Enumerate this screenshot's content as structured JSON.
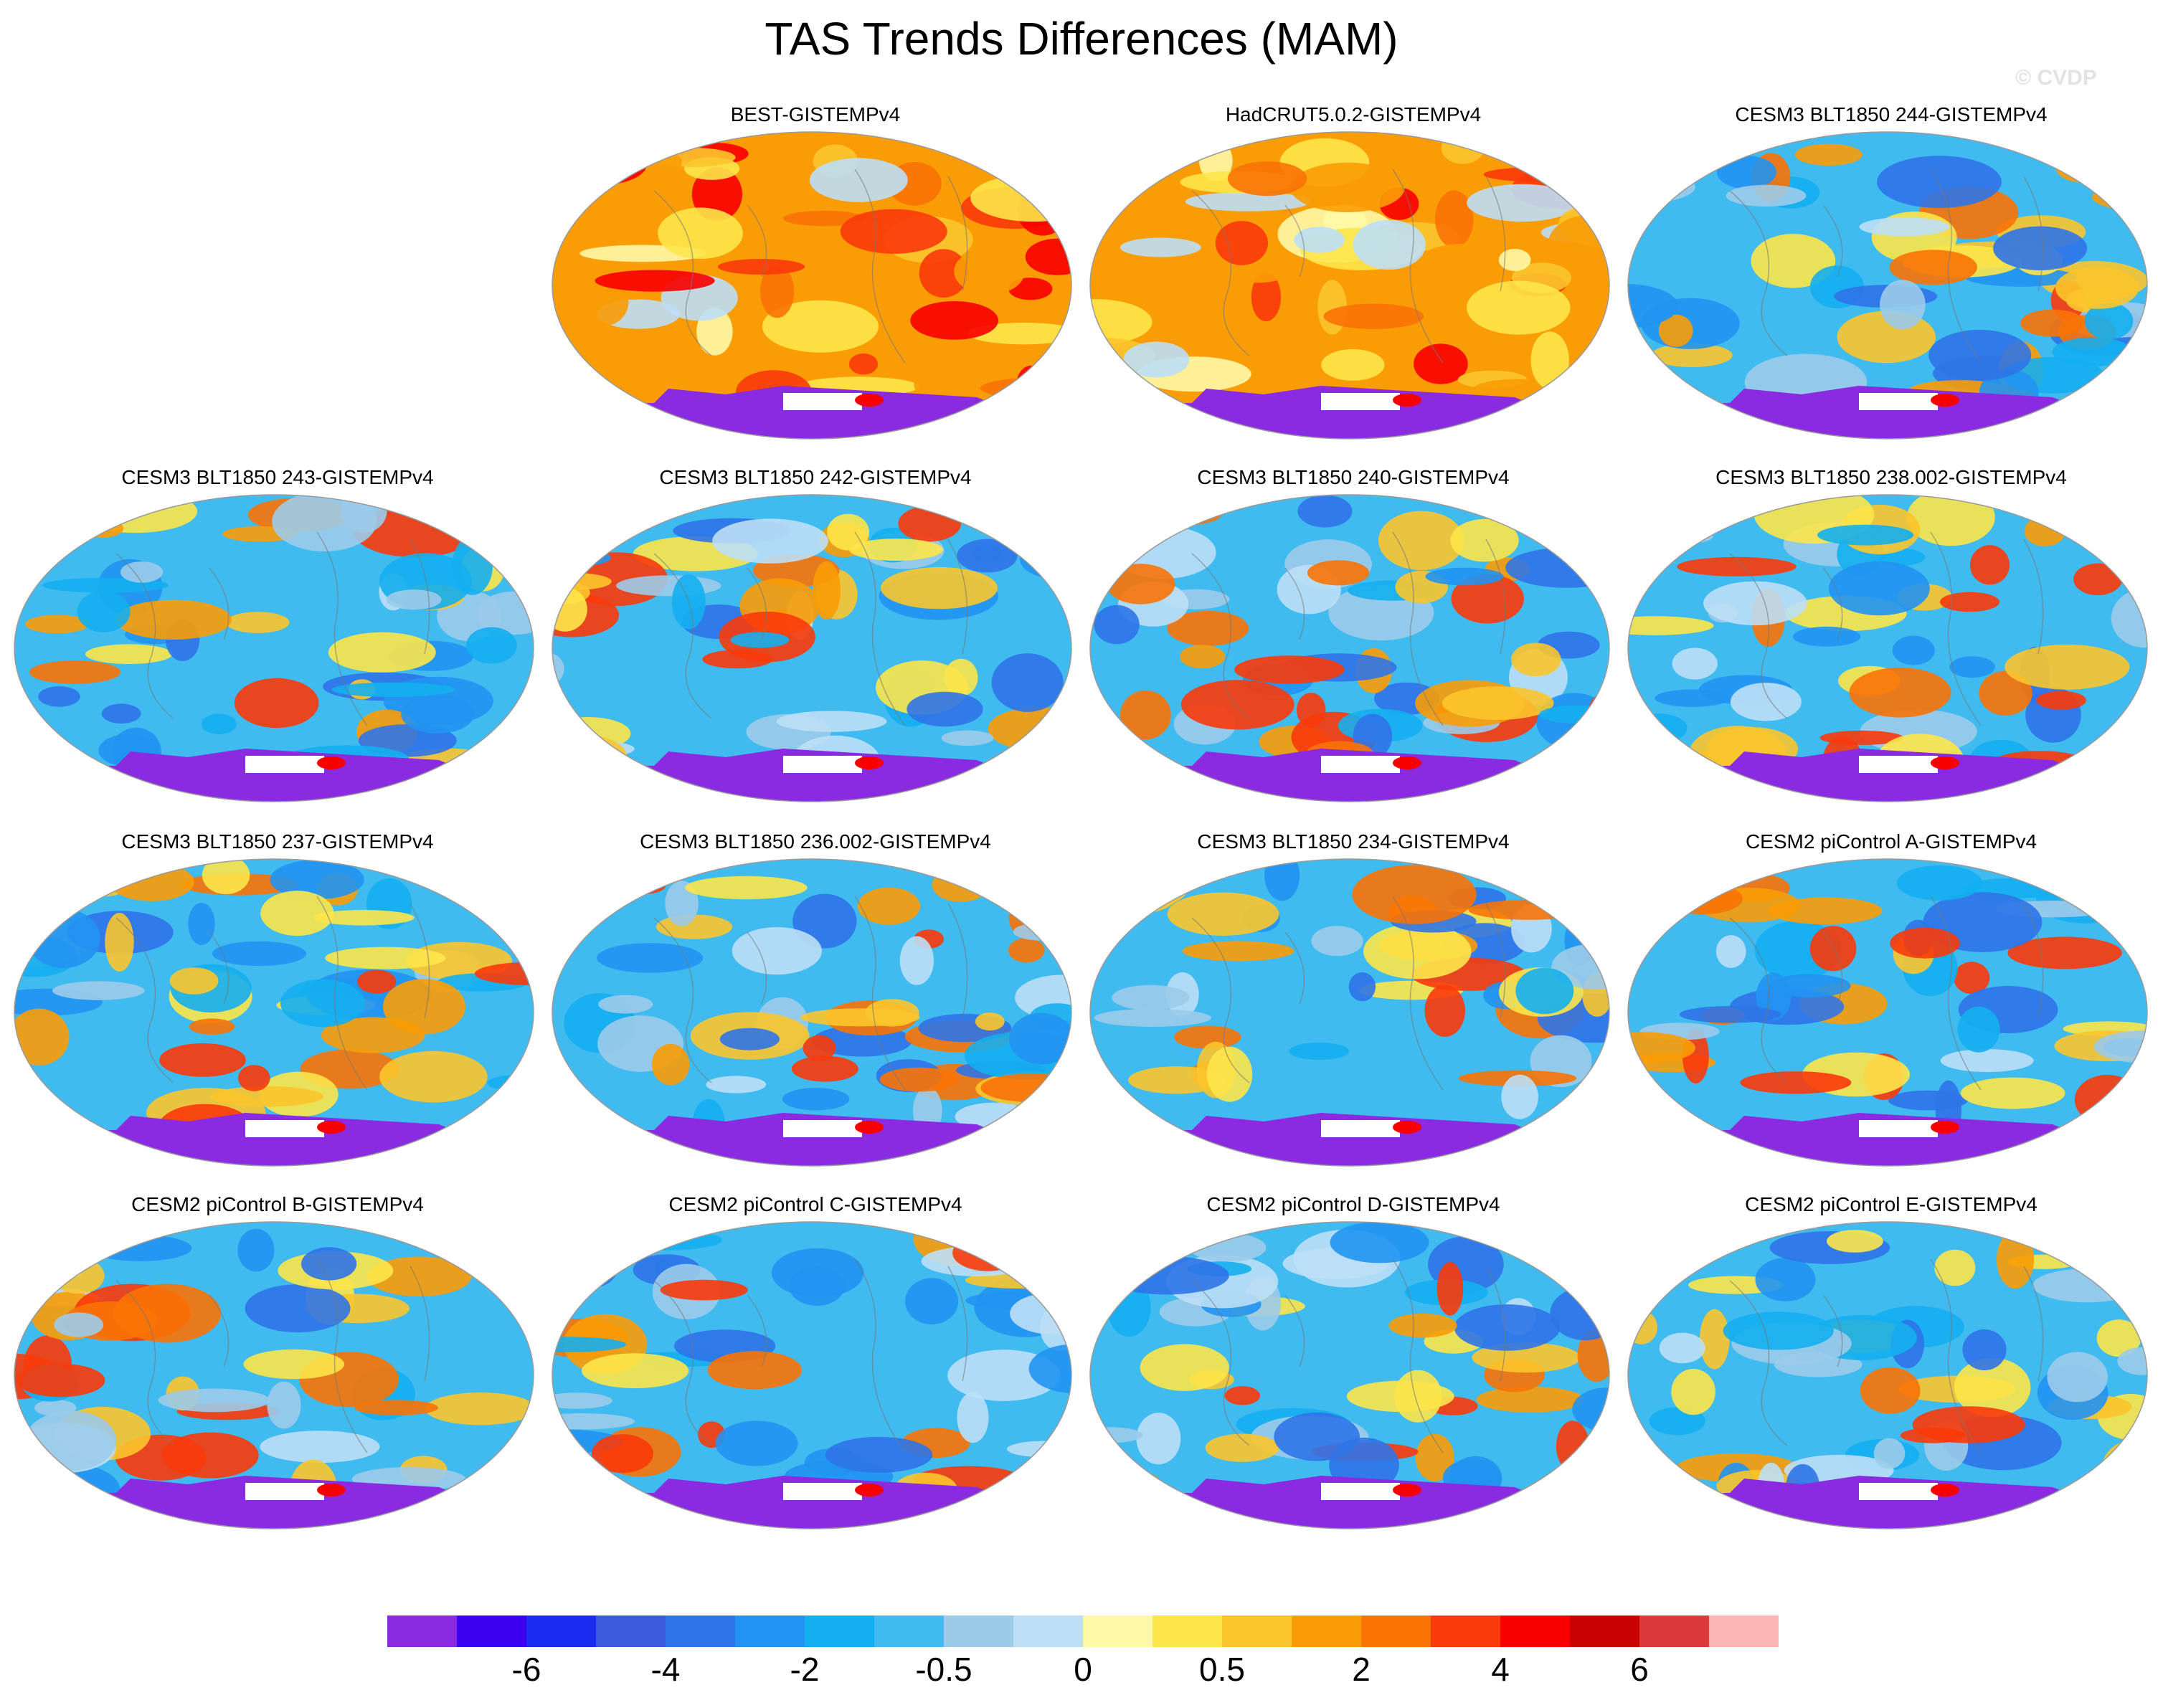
{
  "title": "TAS Trends Differences (MAM)",
  "watermark": "© CVDP",
  "chart_data": {
    "type": "heatmap",
    "variable": "TAS",
    "season": "MAM",
    "colorbar": {
      "colors": [
        "#8a2be2",
        "#3b00f0",
        "#1a2cf0",
        "#3c5bdc",
        "#2f74e8",
        "#2193f2",
        "#14aff0",
        "#3fbbf0",
        "#9ccbea",
        "#bcdff6",
        "#fff8a6",
        "#fde64a",
        "#fbc52c",
        "#fa9c05",
        "#fa7305",
        "#fa3a0a",
        "#f80000",
        "#c80000",
        "#dc3a3a",
        "#fdb6b6"
      ],
      "tick_labels": [
        "-6",
        "-4",
        "-2",
        "-0.5",
        "0",
        "0.5",
        "2",
        "4",
        "6"
      ],
      "tick_boundaries": [
        2,
        4,
        6,
        8,
        10,
        12,
        14,
        16,
        18
      ]
    },
    "panels": [
      {
        "title": "BEST-GISTEMPv4",
        "pattern": "warm"
      },
      {
        "title": "HadCRUT5.0.2-GISTEMPv4",
        "pattern": "warm"
      },
      {
        "title": "CESM3 BLT1850 244-GISTEMPv4",
        "pattern": "cool"
      },
      {
        "title": "CESM3 BLT1850 243-GISTEMPv4",
        "pattern": "cool"
      },
      {
        "title": "CESM3 BLT1850 242-GISTEMPv4",
        "pattern": "cool"
      },
      {
        "title": "CESM3 BLT1850 240-GISTEMPv4",
        "pattern": "cool"
      },
      {
        "title": "CESM3 BLT1850 238.002-GISTEMPv4",
        "pattern": "cool"
      },
      {
        "title": "CESM3 BLT1850 237-GISTEMPv4",
        "pattern": "cool"
      },
      {
        "title": "CESM3 BLT1850 236.002-GISTEMPv4",
        "pattern": "cool"
      },
      {
        "title": "CESM3 BLT1850 234-GISTEMPv4",
        "pattern": "cool"
      },
      {
        "title": "CESM2 piControl A-GISTEMPv4",
        "pattern": "cool"
      },
      {
        "title": "CESM2 piControl B-GISTEMPv4",
        "pattern": "cool"
      },
      {
        "title": "CESM2 piControl C-GISTEMPv4",
        "pattern": "cool"
      },
      {
        "title": "CESM2 piControl D-GISTEMPv4",
        "pattern": "cool"
      },
      {
        "title": "CESM2 piControl E-GISTEMPv4",
        "pattern": "cool"
      }
    ]
  }
}
